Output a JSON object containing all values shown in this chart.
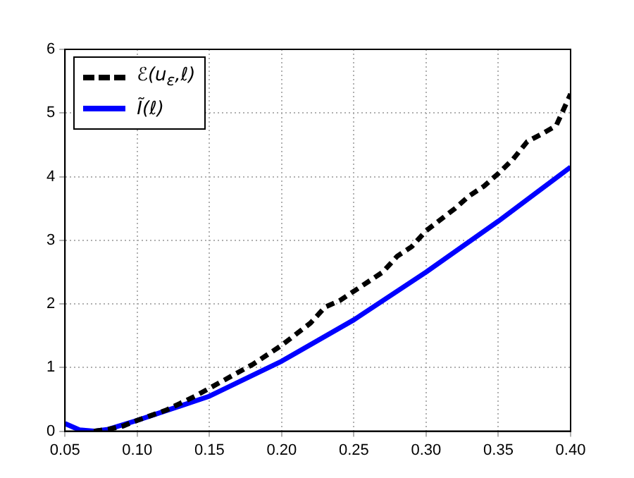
{
  "chart_data": {
    "type": "line",
    "legend": "top left",
    "grid": true,
    "xlim": [
      0.05,
      0.4
    ],
    "ylim": [
      0,
      6
    ],
    "xticks": [
      {
        "value": 0.05,
        "label": "0.05"
      },
      {
        "value": 0.1,
        "label": "0.10"
      },
      {
        "value": 0.15,
        "label": "0.15"
      },
      {
        "value": 0.2,
        "label": "0.20"
      },
      {
        "value": 0.25,
        "label": "0.25"
      },
      {
        "value": 0.3,
        "label": "0.30"
      },
      {
        "value": 0.35,
        "label": "0.35"
      },
      {
        "value": 0.4,
        "label": "0.40"
      }
    ],
    "yticks": [
      0,
      1,
      2,
      3,
      4,
      5,
      6
    ],
    "series": [
      {
        "name": "ℰ(u$_{ε}$,ℓ)",
        "color": "#000000",
        "line_style": "dashed",
        "x": [
          0.07,
          0.08,
          0.09,
          0.1,
          0.12,
          0.14,
          0.16,
          0.18,
          0.2,
          0.22,
          0.23,
          0.24,
          0.26,
          0.27,
          0.28,
          0.29,
          0.3,
          0.32,
          0.33,
          0.34,
          0.35,
          0.36,
          0.37,
          0.38,
          0.39,
          0.4
        ],
        "values": [
          0,
          0.03,
          0.08,
          0.17,
          0.33,
          0.55,
          0.8,
          1.05,
          1.35,
          1.7,
          1.95,
          2.05,
          2.35,
          2.5,
          2.75,
          2.9,
          3.15,
          3.5,
          3.7,
          3.85,
          4.05,
          4.27,
          4.55,
          4.67,
          4.8,
          5.3
        ]
      },
      {
        "name": "Ĩ(ℓ)",
        "color": "#0000ff",
        "line_style": "solid",
        "x": [
          0.05,
          0.06,
          0.07,
          0.08,
          0.1,
          0.15,
          0.2,
          0.25,
          0.3,
          0.35,
          0.4
        ],
        "values": [
          0.12,
          0.02,
          0,
          0.03,
          0.17,
          0.55,
          1.1,
          1.75,
          2.5,
          3.3,
          4.15
        ]
      }
    ]
  }
}
